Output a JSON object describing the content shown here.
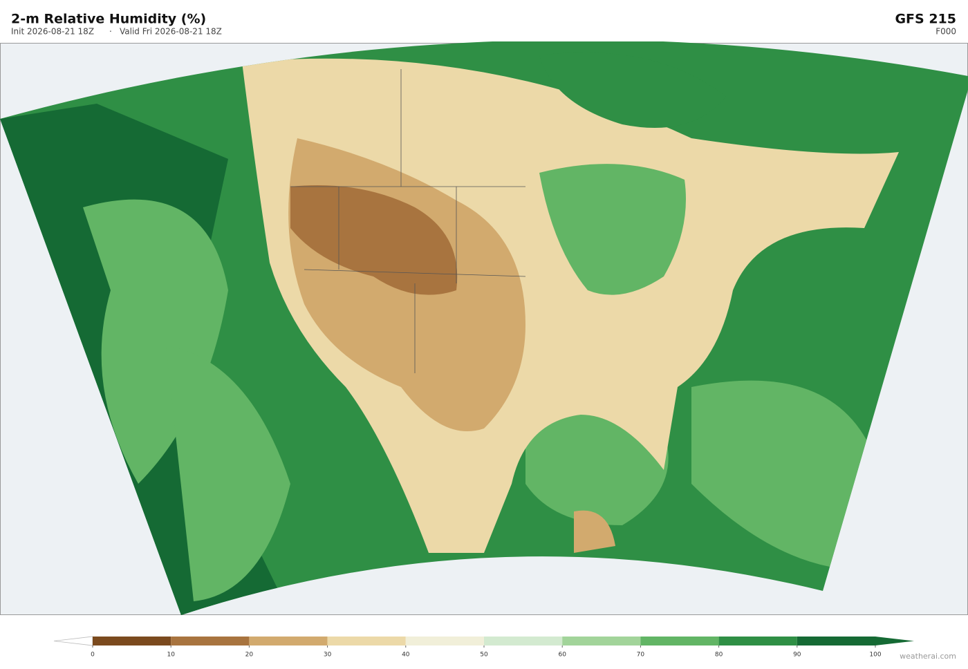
{
  "header": {
    "title": "2-m Relative Humidity  (%)",
    "init": "Init 2026-08-21 18Z",
    "separator": "·",
    "valid": "Valid Fri 2026-08-21 18Z",
    "model": "GFS  215",
    "forecast_hour": "F000"
  },
  "colorbar": {
    "ticks": [
      0,
      10,
      20,
      30,
      40,
      50,
      60,
      70,
      80,
      90,
      100
    ],
    "colors": [
      "#7b4a1e",
      "#a8743f",
      "#d2aa6e",
      "#ecd9a8",
      "#f1efd9",
      "#d3ead0",
      "#a2d49a",
      "#62b565",
      "#2f8f45",
      "#156a34"
    ],
    "under_color": "#ffffff",
    "over_color": "#156a34"
  },
  "footer": {
    "credit": "weatherai.com"
  }
}
